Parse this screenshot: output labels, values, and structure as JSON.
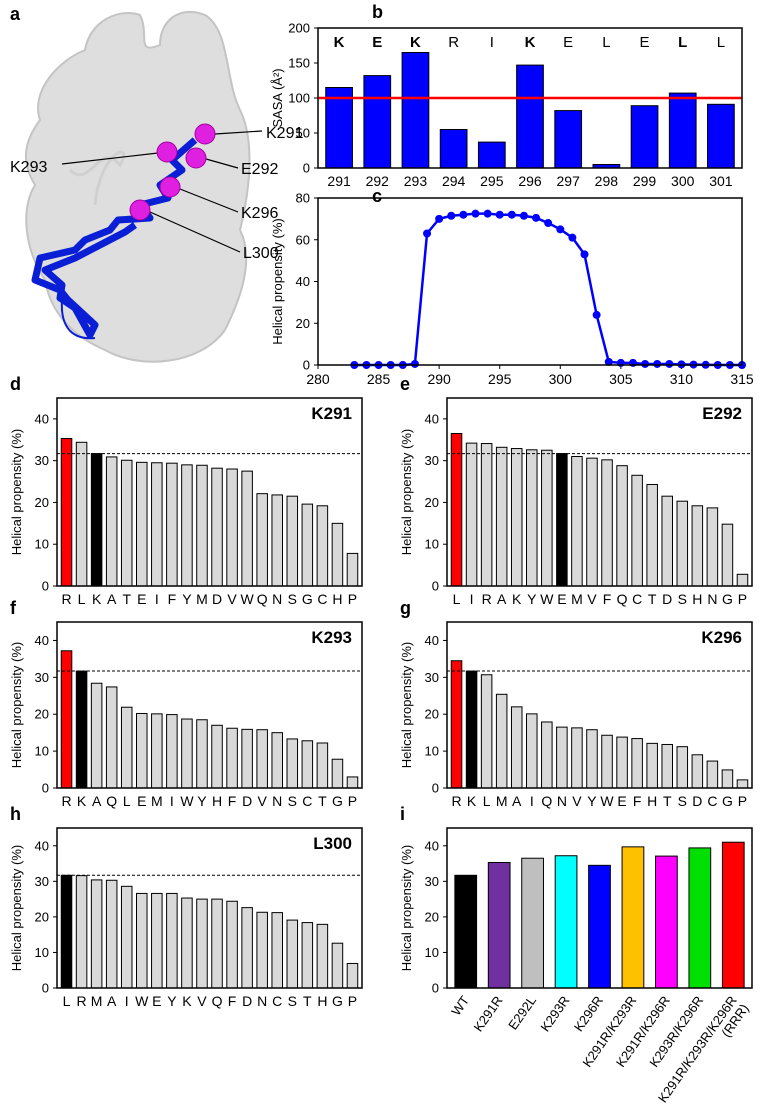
{
  "structure": {
    "panel": "a",
    "labels": [
      "K291",
      "K293",
      "E292",
      "K296",
      "L300"
    ]
  },
  "chart_data": [
    {
      "type": "bar",
      "panel": "b",
      "ylabel": "SASA (Å²)",
      "categories": [
        "291",
        "292",
        "293",
        "294",
        "295",
        "296",
        "297",
        "298",
        "299",
        "300",
        "301"
      ],
      "residues": [
        "K",
        "E",
        "K",
        "R",
        "I",
        "K",
        "E",
        "L",
        "E",
        "L",
        "L"
      ],
      "residues_bold": [
        true,
        true,
        true,
        false,
        false,
        true,
        false,
        false,
        false,
        true,
        false
      ],
      "values": [
        115,
        132,
        165,
        55,
        37,
        147,
        82,
        5,
        89,
        107,
        91
      ],
      "color": "#0000ff",
      "ylim": [
        0,
        200
      ],
      "yticks": [
        0,
        50,
        100,
        150,
        200
      ],
      "reference_line": 100,
      "reference_color": "#ff0000",
      "reference_style": "solid"
    },
    {
      "type": "line",
      "panel": "c",
      "ylabel": "Helical propensity (%)",
      "x": [
        283,
        284,
        285,
        286,
        287,
        288,
        289,
        290,
        291,
        292,
        293,
        294,
        295,
        296,
        297,
        298,
        299,
        300,
        301,
        302,
        303,
        304,
        305,
        306,
        307,
        308,
        309,
        310,
        311,
        312,
        313,
        314,
        315
      ],
      "values": [
        0,
        0,
        0,
        0,
        0,
        0.5,
        63,
        70,
        71.5,
        72,
        72.5,
        72.5,
        72,
        72,
        71.5,
        70.5,
        68,
        65,
        61,
        53,
        24,
        1.5,
        1,
        1,
        0.5,
        0.5,
        0.5,
        0.3,
        0.2,
        0.1,
        0,
        0,
        0
      ],
      "color": "#0000ff",
      "xlim": [
        280,
        315
      ],
      "xticks": [
        280,
        285,
        290,
        295,
        300,
        305,
        310,
        315
      ],
      "ylim": [
        0,
        80
      ],
      "yticks": [
        0,
        20,
        40,
        60,
        80
      ]
    },
    {
      "type": "bar",
      "panel": "d",
      "title": "K291",
      "ylabel": "Helical propensity (%)",
      "categories": [
        "R",
        "L",
        "K",
        "A",
        "T",
        "E",
        "I",
        "F",
        "Y",
        "M",
        "D",
        "V",
        "W",
        "Q",
        "N",
        "S",
        "G",
        "C",
        "H",
        "P"
      ],
      "values": [
        35.3,
        34.4,
        31.7,
        30.9,
        30.1,
        29.6,
        29.5,
        29.4,
        29.0,
        28.9,
        28.2,
        28.0,
        27.5,
        22.1,
        21.8,
        21.5,
        19.6,
        19.2,
        15.0,
        7.8
      ],
      "colors": [
        "#ff0000",
        "#d9d9d9",
        "#000000",
        "#d9d9d9",
        "#d9d9d9",
        "#d9d9d9",
        "#d9d9d9",
        "#d9d9d9",
        "#d9d9d9",
        "#d9d9d9",
        "#d9d9d9",
        "#d9d9d9",
        "#d9d9d9",
        "#d9d9d9",
        "#d9d9d9",
        "#d9d9d9",
        "#d9d9d9",
        "#d9d9d9",
        "#d9d9d9",
        "#d9d9d9"
      ],
      "ylim": [
        0,
        45
      ],
      "yticks": [
        0,
        10,
        20,
        30,
        40
      ],
      "reference_line": 31.7,
      "reference_color": "#000000",
      "reference_style": "dashed"
    },
    {
      "type": "bar",
      "panel": "e",
      "title": "E292",
      "ylabel": "Helical propensity (%)",
      "categories": [
        "L",
        "I",
        "R",
        "A",
        "K",
        "Y",
        "W",
        "E",
        "M",
        "V",
        "F",
        "Q",
        "C",
        "T",
        "D",
        "S",
        "H",
        "N",
        "G",
        "P"
      ],
      "values": [
        36.5,
        34.2,
        34.1,
        33.2,
        32.9,
        32.6,
        32.5,
        31.7,
        31.0,
        30.6,
        30.2,
        28.8,
        26.5,
        24.3,
        21.5,
        20.3,
        19.2,
        18.7,
        14.8,
        2.8
      ],
      "colors": [
        "#ff0000",
        "#d9d9d9",
        "#d9d9d9",
        "#d9d9d9",
        "#d9d9d9",
        "#d9d9d9",
        "#d9d9d9",
        "#000000",
        "#d9d9d9",
        "#d9d9d9",
        "#d9d9d9",
        "#d9d9d9",
        "#d9d9d9",
        "#d9d9d9",
        "#d9d9d9",
        "#d9d9d9",
        "#d9d9d9",
        "#d9d9d9",
        "#d9d9d9",
        "#d9d9d9"
      ],
      "ylim": [
        0,
        45
      ],
      "yticks": [
        0,
        10,
        20,
        30,
        40
      ],
      "reference_line": 31.7,
      "reference_color": "#000000",
      "reference_style": "dashed"
    },
    {
      "type": "bar",
      "panel": "f",
      "title": "K293",
      "ylabel": "Helical propensity (%)",
      "categories": [
        "R",
        "K",
        "A",
        "Q",
        "L",
        "E",
        "M",
        "I",
        "W",
        "Y",
        "H",
        "F",
        "D",
        "V",
        "N",
        "S",
        "C",
        "T",
        "G",
        "P"
      ],
      "values": [
        37.2,
        31.7,
        28.4,
        27.4,
        21.9,
        20.2,
        20.1,
        19.9,
        18.7,
        18.5,
        17.0,
        16.2,
        15.9,
        15.8,
        15.0,
        13.3,
        12.8,
        12.2,
        7.8,
        3.0
      ],
      "colors": [
        "#ff0000",
        "#000000",
        "#d9d9d9",
        "#d9d9d9",
        "#d9d9d9",
        "#d9d9d9",
        "#d9d9d9",
        "#d9d9d9",
        "#d9d9d9",
        "#d9d9d9",
        "#d9d9d9",
        "#d9d9d9",
        "#d9d9d9",
        "#d9d9d9",
        "#d9d9d9",
        "#d9d9d9",
        "#d9d9d9",
        "#d9d9d9",
        "#d9d9d9",
        "#d9d9d9"
      ],
      "ylim": [
        0,
        45
      ],
      "yticks": [
        0,
        10,
        20,
        30,
        40
      ],
      "reference_line": 31.7,
      "reference_color": "#000000",
      "reference_style": "dashed"
    },
    {
      "type": "bar",
      "panel": "g",
      "title": "K296",
      "ylabel": "Helical propensity (%)",
      "categories": [
        "R",
        "K",
        "L",
        "M",
        "A",
        "I",
        "Q",
        "N",
        "V",
        "Y",
        "W",
        "E",
        "F",
        "H",
        "T",
        "S",
        "D",
        "C",
        "G",
        "P"
      ],
      "values": [
        34.5,
        31.7,
        30.7,
        25.4,
        22.0,
        20.1,
        17.9,
        16.5,
        16.3,
        15.8,
        14.3,
        13.8,
        13.4,
        12.1,
        11.8,
        11.2,
        9.0,
        7.3,
        4.9,
        2.2
      ],
      "colors": [
        "#ff0000",
        "#000000",
        "#d9d9d9",
        "#d9d9d9",
        "#d9d9d9",
        "#d9d9d9",
        "#d9d9d9",
        "#d9d9d9",
        "#d9d9d9",
        "#d9d9d9",
        "#d9d9d9",
        "#d9d9d9",
        "#d9d9d9",
        "#d9d9d9",
        "#d9d9d9",
        "#d9d9d9",
        "#d9d9d9",
        "#d9d9d9",
        "#d9d9d9",
        "#d9d9d9"
      ],
      "ylim": [
        0,
        45
      ],
      "yticks": [
        0,
        10,
        20,
        30,
        40
      ],
      "reference_line": 31.7,
      "reference_color": "#000000",
      "reference_style": "dashed"
    },
    {
      "type": "bar",
      "panel": "h",
      "title": "L300",
      "ylabel": "Helical propensity (%)",
      "categories": [
        "L",
        "R",
        "M",
        "A",
        "I",
        "W",
        "E",
        "Y",
        "K",
        "V",
        "Q",
        "F",
        "D",
        "N",
        "C",
        "S",
        "T",
        "H",
        "G",
        "P"
      ],
      "values": [
        31.7,
        31.6,
        30.4,
        30.3,
        28.6,
        26.6,
        26.6,
        26.6,
        25.3,
        25.0,
        25.0,
        24.4,
        22.6,
        21.3,
        21.2,
        19.1,
        18.4,
        17.9,
        12.6,
        6.9
      ],
      "colors": [
        "#000000",
        "#d9d9d9",
        "#d9d9d9",
        "#d9d9d9",
        "#d9d9d9",
        "#d9d9d9",
        "#d9d9d9",
        "#d9d9d9",
        "#d9d9d9",
        "#d9d9d9",
        "#d9d9d9",
        "#d9d9d9",
        "#d9d9d9",
        "#d9d9d9",
        "#d9d9d9",
        "#d9d9d9",
        "#d9d9d9",
        "#d9d9d9",
        "#d9d9d9",
        "#d9d9d9"
      ],
      "ylim": [
        0,
        45
      ],
      "yticks": [
        0,
        10,
        20,
        30,
        40
      ],
      "reference_line": 31.7,
      "reference_color": "#000000",
      "reference_style": "dashed"
    },
    {
      "type": "bar",
      "panel": "i",
      "ylabel": "Helical propensity (%)",
      "rotate_labels": true,
      "categories": [
        "WT",
        "K291R",
        "E292L",
        "K293R",
        "K296R",
        "K291R/K293R",
        "K291R/K296R",
        "K293R/K296R",
        "K291R/K293R/K296R"
      ],
      "annotation": "(RRR)",
      "values": [
        31.7,
        35.3,
        36.5,
        37.2,
        34.5,
        39.7,
        37.1,
        39.4,
        41.0
      ],
      "colors": [
        "#000000",
        "#7030a0",
        "#bfbfbf",
        "#00ffff",
        "#0000ff",
        "#ffc000",
        "#ff00ff",
        "#00e000",
        "#ff0000"
      ],
      "ylim": [
        0,
        45
      ],
      "yticks": [
        0,
        10,
        20,
        30,
        40
      ]
    }
  ]
}
